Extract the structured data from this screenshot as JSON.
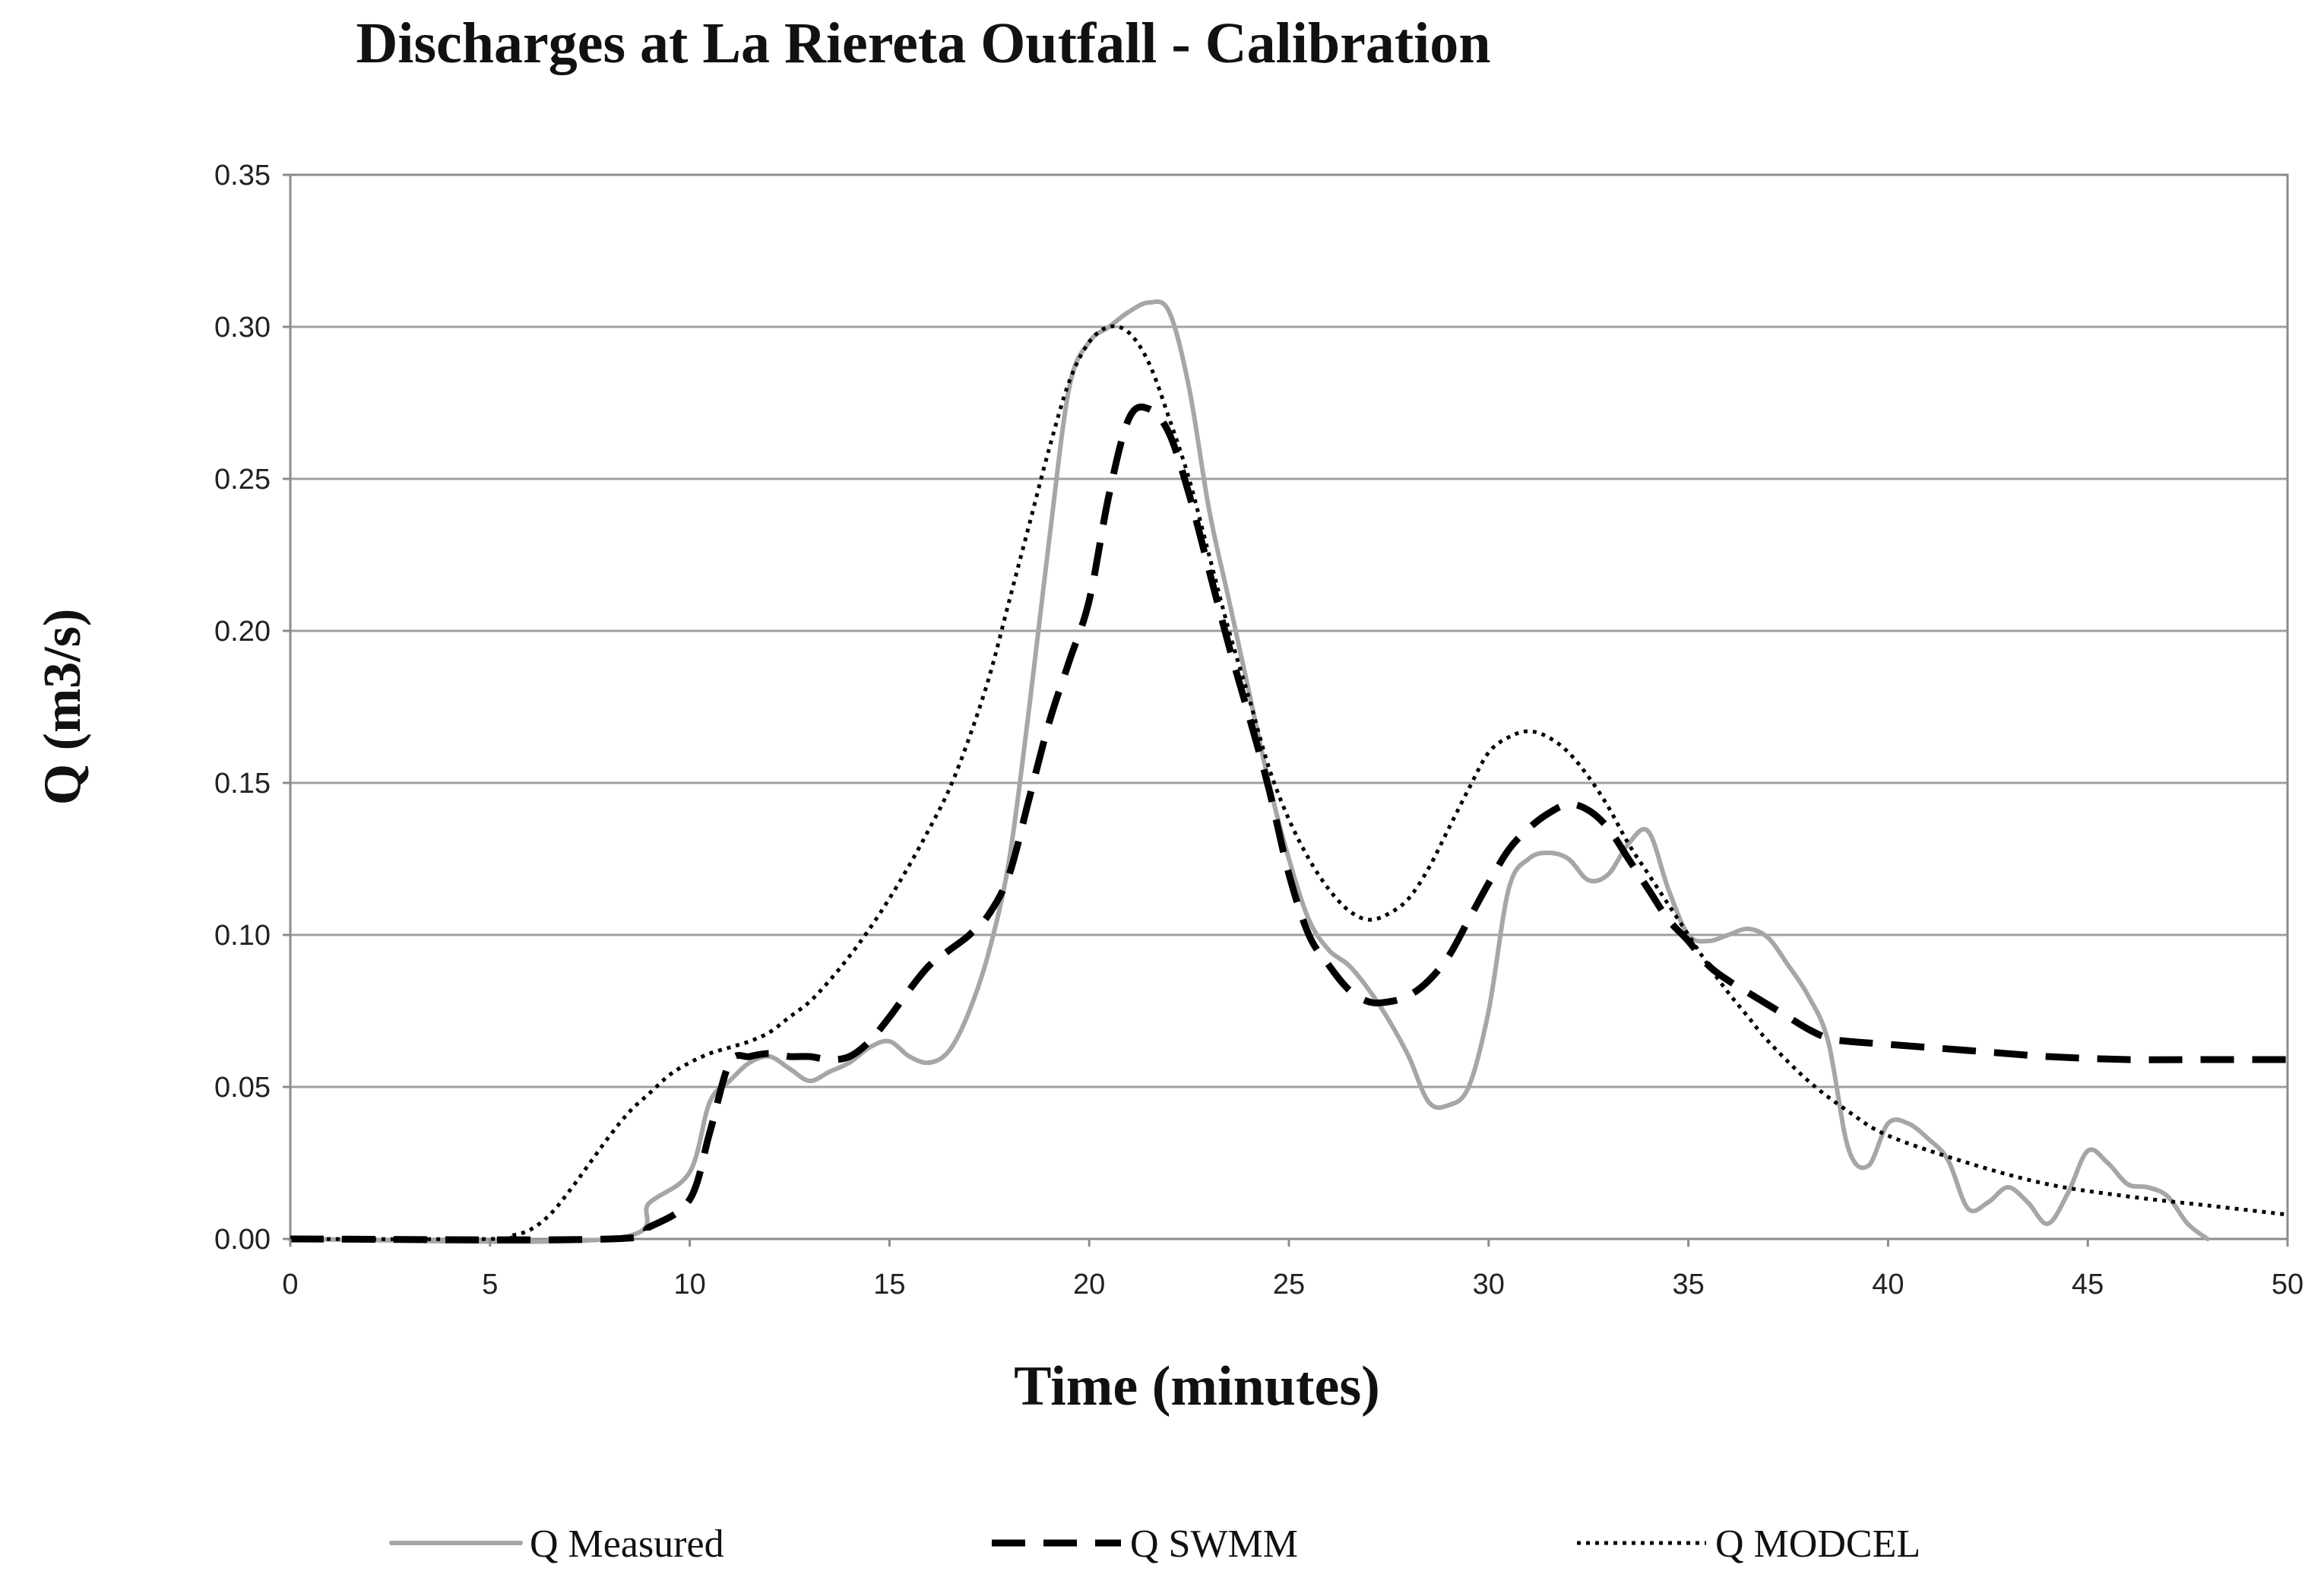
{
  "chart_data": {
    "type": "line",
    "title": "Discharges at La Riereta Outfall - Calibration",
    "xlabel": "Time (minutes)",
    "ylabel": "Q (m3/s)",
    "xlim": [
      0,
      50
    ],
    "ylim": [
      0,
      0.35
    ],
    "x_ticks": [
      0,
      5,
      10,
      15,
      20,
      25,
      30,
      35,
      40,
      45,
      50
    ],
    "x_tick_labels": [
      "0",
      "5",
      "10",
      "15",
      "20",
      "25",
      "30",
      "35",
      "40",
      "45",
      "50"
    ],
    "y_ticks": [
      0,
      0.05,
      0.1,
      0.15,
      0.2,
      0.25,
      0.3,
      0.35
    ],
    "y_tick_labels": [
      "0.00",
      "0.05",
      "0.10",
      "0.15",
      "0.20",
      "0.25",
      "0.30",
      "0.35"
    ],
    "grid": "horizontal",
    "legend_position": "bottom",
    "series": [
      {
        "name": "Q Measured",
        "style": "solid",
        "color": "#a6a6a6",
        "x": [
          0,
          8,
          9,
          10,
          10.5,
          11,
          11.5,
          12,
          12.5,
          13,
          13.5,
          14,
          14.5,
          15,
          15.5,
          16,
          16.5,
          17,
          17.5,
          18,
          18.5,
          19,
          19.5,
          20,
          20.5,
          21,
          21.5,
          22,
          22.5,
          23,
          23.5,
          24,
          24.5,
          25,
          25.5,
          26,
          26.5,
          27,
          27.5,
          28,
          28.5,
          29,
          29.5,
          30,
          30.5,
          31,
          31.5,
          32,
          32.5,
          33,
          33.5,
          34,
          34.5,
          35,
          35.5,
          36,
          36.5,
          37,
          37.5,
          38,
          38.5,
          39,
          39.5,
          40,
          40.5,
          41,
          41.5,
          42,
          42.5,
          43,
          43.5,
          44,
          44.5,
          45,
          45.5,
          46,
          46.5,
          47,
          47.5,
          48
        ],
        "y": [
          0,
          0,
          0.012,
          0.022,
          0.045,
          0.052,
          0.058,
          0.06,
          0.056,
          0.052,
          0.055,
          0.058,
          0.063,
          0.065,
          0.06,
          0.058,
          0.062,
          0.075,
          0.095,
          0.125,
          0.175,
          0.23,
          0.28,
          0.295,
          0.3,
          0.305,
          0.308,
          0.305,
          0.28,
          0.24,
          0.21,
          0.18,
          0.15,
          0.125,
          0.105,
          0.095,
          0.09,
          0.082,
          0.072,
          0.06,
          0.045,
          0.044,
          0.05,
          0.075,
          0.115,
          0.125,
          0.127,
          0.125,
          0.118,
          0.12,
          0.13,
          0.134,
          0.115,
          0.1,
          0.098,
          0.1,
          0.102,
          0.099,
          0.09,
          0.08,
          0.065,
          0.03,
          0.024,
          0.038,
          0.038,
          0.033,
          0.026,
          0.01,
          0.012,
          0.017,
          0.012,
          0.005,
          0.015,
          0.029,
          0.025,
          0.018,
          0.017,
          0.014,
          0.005,
          0
        ]
      },
      {
        "name": "Q SWMM",
        "style": "dashed",
        "color": "#000000",
        "x": [
          0,
          8,
          9,
          10,
          10.5,
          11,
          11.5,
          12,
          12.5,
          13,
          13.5,
          14,
          14.5,
          15,
          15.5,
          16,
          16.5,
          17,
          17.5,
          18,
          18.5,
          19,
          19.5,
          20,
          20.5,
          21,
          21.5,
          22,
          22.5,
          23,
          23.5,
          24,
          24.5,
          25,
          25.5,
          26,
          26.5,
          27,
          27.5,
          28,
          28.5,
          29,
          29.5,
          30,
          30.5,
          31,
          31.5,
          32,
          32.5,
          33,
          33.5,
          34,
          34.5,
          35,
          35.5,
          36,
          36.5,
          37,
          37.5,
          38,
          38.5,
          39,
          40,
          42,
          44,
          46,
          48,
          50
        ],
        "y": [
          0,
          0,
          0.004,
          0.013,
          0.035,
          0.058,
          0.06,
          0.061,
          0.06,
          0.06,
          0.059,
          0.06,
          0.065,
          0.073,
          0.082,
          0.09,
          0.095,
          0.1,
          0.107,
          0.12,
          0.145,
          0.17,
          0.19,
          0.21,
          0.245,
          0.27,
          0.273,
          0.265,
          0.245,
          0.22,
          0.195,
          0.172,
          0.148,
          0.12,
          0.1,
          0.09,
          0.082,
          0.078,
          0.078,
          0.08,
          0.085,
          0.093,
          0.105,
          0.117,
          0.128,
          0.135,
          0.14,
          0.143,
          0.141,
          0.135,
          0.125,
          0.115,
          0.105,
          0.098,
          0.09,
          0.085,
          0.081,
          0.077,
          0.073,
          0.069,
          0.066,
          0.065,
          0.064,
          0.062,
          0.06,
          0.059,
          0.059,
          0.059
        ]
      },
      {
        "name": "Q MODCEL",
        "style": "dotted",
        "color": "#000000",
        "x": [
          0,
          5,
          5.5,
          6,
          6.5,
          7,
          7.5,
          8,
          8.5,
          9,
          9.5,
          10,
          10.5,
          11,
          11.5,
          12,
          12.5,
          13,
          13.5,
          14,
          14.5,
          15,
          15.5,
          16,
          16.5,
          17,
          17.5,
          18,
          18.5,
          19,
          19.5,
          20,
          20.5,
          21,
          21.5,
          22,
          22.5,
          23,
          23.5,
          24,
          24.5,
          25,
          25.5,
          26,
          26.5,
          27,
          27.5,
          28,
          28.5,
          29,
          29.5,
          30,
          30.5,
          31,
          31.5,
          32,
          32.5,
          33,
          33.5,
          34,
          34.5,
          35,
          35.5,
          36,
          36.5,
          37,
          38,
          39,
          40,
          42,
          44,
          46,
          48,
          50
        ],
        "y": [
          0,
          0,
          0.001,
          0.003,
          0.008,
          0.016,
          0.025,
          0.034,
          0.042,
          0.048,
          0.054,
          0.058,
          0.061,
          0.063,
          0.065,
          0.068,
          0.073,
          0.078,
          0.085,
          0.093,
          0.102,
          0.112,
          0.123,
          0.135,
          0.148,
          0.165,
          0.185,
          0.21,
          0.235,
          0.26,
          0.282,
          0.295,
          0.3,
          0.298,
          0.288,
          0.27,
          0.25,
          0.225,
          0.2,
          0.178,
          0.155,
          0.138,
          0.125,
          0.115,
          0.108,
          0.105,
          0.107,
          0.112,
          0.122,
          0.135,
          0.148,
          0.16,
          0.165,
          0.167,
          0.165,
          0.16,
          0.152,
          0.142,
          0.13,
          0.12,
          0.11,
          0.1,
          0.09,
          0.081,
          0.073,
          0.065,
          0.052,
          0.042,
          0.034,
          0.025,
          0.018,
          0.014,
          0.011,
          0.008
        ]
      }
    ]
  }
}
